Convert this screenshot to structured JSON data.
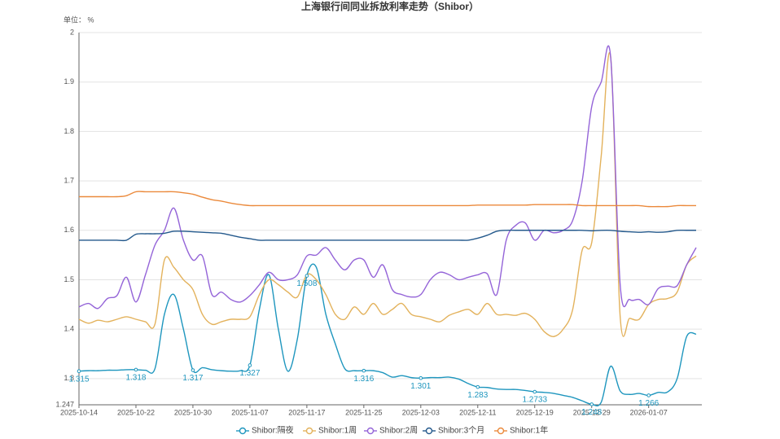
{
  "chart_data": {
    "type": "line",
    "title": "上海银行间同业拆放利率走势（Shibor）",
    "y_unit_label": "单位： %",
    "categories": [
      "2025-10-14",
      null,
      null,
      null,
      null,
      null,
      "2025-10-22",
      null,
      null,
      null,
      null,
      null,
      "2025-10-30",
      null,
      null,
      null,
      null,
      null,
      "2025-11-07",
      null,
      null,
      null,
      null,
      null,
      "2025-11-17",
      null,
      null,
      null,
      null,
      null,
      "2025-11-25",
      null,
      null,
      null,
      null,
      null,
      "2025-12-03",
      null,
      null,
      null,
      null,
      null,
      "2025-12-11",
      null,
      null,
      null,
      null,
      null,
      "2025-12-19",
      null,
      null,
      null,
      null,
      null,
      "2025-12-29",
      null,
      null,
      null,
      null,
      null,
      "2026-01-07",
      null,
      null,
      null,
      null,
      null
    ],
    "ylim": [
      1.247,
      2
    ],
    "yticks": [
      1.247,
      1.3,
      1.4,
      1.5,
      1.6,
      1.7,
      1.8,
      1.9,
      2
    ],
    "grid": true,
    "legend": "bottom",
    "smooth": true,
    "series": [
      {
        "name": "Shibor:隔夜",
        "color": "#1e96be",
        "values": [
          1.315,
          1.316,
          1.316,
          1.317,
          1.317,
          1.318,
          1.318,
          1.317,
          1.32,
          1.43,
          1.47,
          1.4,
          1.317,
          1.322,
          1.318,
          1.316,
          1.315,
          1.316,
          1.327,
          1.44,
          1.51,
          1.4,
          1.315,
          1.38,
          1.508,
          1.525,
          1.43,
          1.37,
          1.32,
          1.316,
          1.316,
          1.316,
          1.312,
          1.303,
          1.306,
          1.302,
          1.301,
          1.302,
          1.302,
          1.303,
          1.299,
          1.29,
          1.283,
          1.282,
          1.279,
          1.278,
          1.278,
          1.276,
          1.2733,
          1.272,
          1.27,
          1.266,
          1.262,
          1.255,
          1.248,
          1.252,
          1.325,
          1.275,
          1.268,
          1.27,
          1.266,
          1.272,
          1.273,
          1.3,
          1.385,
          1.39
        ],
        "value_labels": [
          "1.315",
          null,
          null,
          null,
          null,
          null,
          "1.318",
          null,
          null,
          null,
          null,
          null,
          "1.317",
          null,
          null,
          null,
          null,
          null,
          "1.327",
          null,
          null,
          null,
          null,
          null,
          "1.508",
          null,
          null,
          null,
          null,
          null,
          "1.316",
          null,
          null,
          null,
          null,
          null,
          "1.301",
          null,
          null,
          null,
          null,
          null,
          "1.283",
          null,
          null,
          null,
          null,
          null,
          "1.2733",
          null,
          null,
          null,
          null,
          null,
          "1.248",
          null,
          null,
          null,
          null,
          null,
          "1.266",
          null,
          null,
          null,
          null,
          null
        ]
      },
      {
        "name": "Shibor:1周",
        "color": "#e3b25c",
        "values": [
          1.42,
          1.412,
          1.418,
          1.415,
          1.42,
          1.425,
          1.42,
          1.415,
          1.41,
          1.54,
          1.525,
          1.5,
          1.48,
          1.43,
          1.41,
          1.415,
          1.42,
          1.42,
          1.425,
          1.47,
          1.5,
          1.49,
          1.475,
          1.465,
          1.51,
          1.5,
          1.47,
          1.43,
          1.42,
          1.445,
          1.43,
          1.452,
          1.43,
          1.44,
          1.452,
          1.43,
          1.425,
          1.42,
          1.415,
          1.428,
          1.435,
          1.44,
          1.43,
          1.452,
          1.43,
          1.43,
          1.428,
          1.432,
          1.42,
          1.395,
          1.385,
          1.4,
          1.44,
          1.56,
          1.575,
          1.75,
          1.95,
          1.425,
          1.422,
          1.42,
          1.45,
          1.46,
          1.462,
          1.475,
          1.53,
          1.548
        ]
      },
      {
        "name": "Shibor:2周",
        "color": "#9464d8",
        "values": [
          1.445,
          1.452,
          1.442,
          1.462,
          1.468,
          1.505,
          1.455,
          1.51,
          1.57,
          1.6,
          1.645,
          1.58,
          1.54,
          1.548,
          1.47,
          1.475,
          1.46,
          1.455,
          1.468,
          1.49,
          1.515,
          1.5,
          1.5,
          1.51,
          1.548,
          1.55,
          1.565,
          1.54,
          1.52,
          1.54,
          1.54,
          1.505,
          1.53,
          1.48,
          1.47,
          1.465,
          1.47,
          1.5,
          1.515,
          1.51,
          1.5,
          1.505,
          1.51,
          1.512,
          1.47,
          1.58,
          1.61,
          1.615,
          1.58,
          1.6,
          1.595,
          1.6,
          1.62,
          1.7,
          1.85,
          1.9,
          1.95,
          1.49,
          1.46,
          1.46,
          1.45,
          1.482,
          1.487,
          1.488,
          1.53,
          1.565
        ]
      },
      {
        "name": "Shibor:3个月",
        "color": "#24598c",
        "values": [
          1.58,
          1.58,
          1.58,
          1.58,
          1.58,
          1.58,
          1.592,
          1.593,
          1.593,
          1.594,
          1.598,
          1.598,
          1.597,
          1.596,
          1.595,
          1.594,
          1.59,
          1.586,
          1.583,
          1.58,
          1.58,
          1.58,
          1.58,
          1.58,
          1.58,
          1.58,
          1.58,
          1.58,
          1.58,
          1.58,
          1.58,
          1.58,
          1.58,
          1.58,
          1.58,
          1.58,
          1.58,
          1.58,
          1.58,
          1.58,
          1.58,
          1.58,
          1.584,
          1.59,
          1.598,
          1.6,
          1.6,
          1.6,
          1.6,
          1.6,
          1.6,
          1.6,
          1.6,
          1.6,
          1.599,
          1.6,
          1.6,
          1.598,
          1.597,
          1.596,
          1.597,
          1.596,
          1.597,
          1.6,
          1.6,
          1.6
        ]
      },
      {
        "name": "Shibor:1年",
        "color": "#eb8a3c",
        "values": [
          1.668,
          1.668,
          1.668,
          1.668,
          1.668,
          1.67,
          1.678,
          1.678,
          1.678,
          1.678,
          1.678,
          1.676,
          1.673,
          1.667,
          1.662,
          1.659,
          1.655,
          1.652,
          1.65,
          1.65,
          1.65,
          1.65,
          1.65,
          1.65,
          1.65,
          1.65,
          1.65,
          1.65,
          1.65,
          1.65,
          1.65,
          1.65,
          1.65,
          1.65,
          1.65,
          1.65,
          1.65,
          1.65,
          1.65,
          1.65,
          1.65,
          1.65,
          1.651,
          1.651,
          1.651,
          1.651,
          1.651,
          1.651,
          1.652,
          1.652,
          1.652,
          1.652,
          1.652,
          1.65,
          1.65,
          1.65,
          1.65,
          1.65,
          1.65,
          1.65,
          1.648,
          1.648,
          1.648,
          1.65,
          1.65,
          1.65
        ]
      }
    ]
  }
}
